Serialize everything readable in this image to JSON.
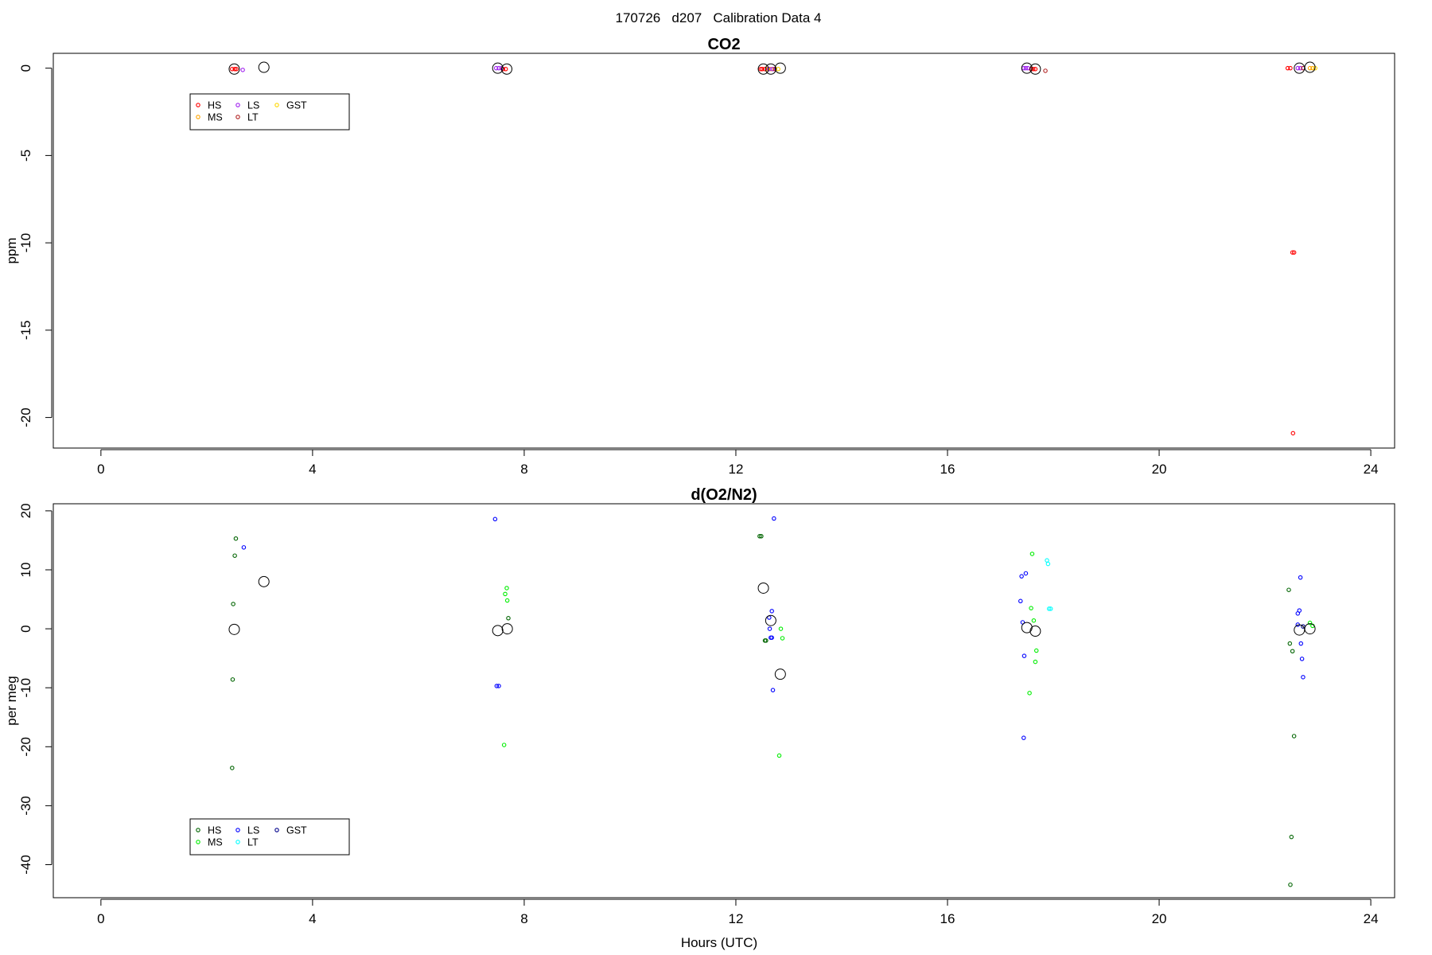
{
  "title": "170726   d207   Calibration Data 4",
  "xlabel": "Hours (UTC)",
  "chart_data": [
    {
      "type": "scatter",
      "title": "CO2",
      "ylabel": "ppm",
      "xlim": [
        -0.9,
        24.45
      ],
      "ylim": [
        -21.75,
        0.85
      ],
      "xticks": [
        "0",
        "4",
        "8",
        "12",
        "16",
        "20",
        "24"
      ],
      "yticks": [
        "0",
        "-5",
        "-10",
        "-15",
        "-20"
      ],
      "legend": {
        "placement": "top-left",
        "items": [
          {
            "name": "HS",
            "color": "#ff0000"
          },
          {
            "name": "LS",
            "color": "#a020f0"
          },
          {
            "name": "GST",
            "color": "#ffd700"
          },
          {
            "name": "MS",
            "color": "#ffa500"
          },
          {
            "name": "LT",
            "color": "#b22222"
          }
        ]
      },
      "series": [
        {
          "name": "HS",
          "color": "#ff0000",
          "points": [
            [
              2.48,
              -0.05
            ],
            [
              2.53,
              -0.05
            ],
            [
              2.56,
              -0.05
            ],
            [
              7.6,
              -0.05
            ],
            [
              7.65,
              -0.05
            ],
            [
              12.47,
              -0.05
            ],
            [
              12.5,
              -0.05
            ],
            [
              12.55,
              -0.05
            ],
            [
              17.58,
              -0.05
            ],
            [
              17.62,
              -0.05
            ],
            [
              17.66,
              -0.05
            ],
            [
              22.43,
              0.0
            ],
            [
              22.48,
              0.0
            ],
            [
              22.52,
              -10.55
            ],
            [
              22.55,
              -10.55
            ],
            [
              22.53,
              -20.9
            ]
          ]
        },
        {
          "name": "MS",
          "color": "#ffa500",
          "points": [
            [
              12.6,
              -0.05
            ],
            [
              12.67,
              -0.05
            ],
            [
              22.85,
              0.0
            ],
            [
              22.9,
              0.0
            ]
          ]
        },
        {
          "name": "LS",
          "color": "#a020f0",
          "points": [
            [
              2.68,
              -0.1
            ],
            [
              7.47,
              0.0
            ],
            [
              7.52,
              0.0
            ],
            [
              7.57,
              0.0
            ],
            [
              12.63,
              -0.05
            ],
            [
              12.7,
              -0.05
            ],
            [
              17.44,
              0.0
            ],
            [
              17.48,
              0.0
            ],
            [
              17.52,
              0.0
            ],
            [
              22.62,
              0.0
            ],
            [
              22.67,
              0.0
            ]
          ]
        },
        {
          "name": "LT",
          "color": "#b22222",
          "points": [
            [
              12.74,
              -0.05
            ],
            [
              17.85,
              -0.15
            ],
            [
              22.72,
              0.0
            ]
          ]
        },
        {
          "name": "GST",
          "color": "#ffd700",
          "points": [
            [
              12.8,
              -0.05
            ],
            [
              22.95,
              0.0
            ]
          ]
        },
        {
          "name": "mean",
          "color": "#000000",
          "large": true,
          "points": [
            [
              2.52,
              -0.05
            ],
            [
              3.08,
              0.05
            ],
            [
              7.5,
              0.0
            ],
            [
              7.67,
              -0.05
            ],
            [
              12.52,
              -0.05
            ],
            [
              12.66,
              -0.05
            ],
            [
              12.84,
              0.0
            ],
            [
              17.5,
              0.0
            ],
            [
              17.66,
              -0.05
            ],
            [
              22.65,
              0.0
            ],
            [
              22.85,
              0.05
            ]
          ]
        }
      ]
    },
    {
      "type": "scatter",
      "title": "d(O2/N2)",
      "ylabel": "per meg",
      "xlim": [
        -0.9,
        24.45
      ],
      "ylim": [
        -45.6,
        21.2
      ],
      "xticks": [
        "0",
        "4",
        "8",
        "12",
        "16",
        "20",
        "24"
      ],
      "yticks": [
        "20",
        "10",
        "0",
        "-10",
        "-20",
        "-30",
        "-40"
      ],
      "legend": {
        "placement": "bottom-left",
        "items": [
          {
            "name": "HS",
            "color": "#006400"
          },
          {
            "name": "LS",
            "color": "#0000ff"
          },
          {
            "name": "GST",
            "color": "#00008b"
          },
          {
            "name": "MS",
            "color": "#00ee00"
          },
          {
            "name": "LT",
            "color": "#00ffff"
          }
        ]
      },
      "series": [
        {
          "name": "HS",
          "color": "#006400",
          "points": [
            [
              2.55,
              15.3
            ],
            [
              2.53,
              12.4
            ],
            [
              2.5,
              4.2
            ],
            [
              2.49,
              -8.6
            ],
            [
              2.48,
              -23.6
            ],
            [
              7.7,
              1.8
            ],
            [
              12.45,
              15.7
            ],
            [
              12.48,
              15.7
            ],
            [
              12.55,
              -2.0
            ],
            [
              12.57,
              -2.0
            ],
            [
              22.45,
              6.6
            ],
            [
              22.47,
              -2.5
            ],
            [
              22.52,
              -3.8
            ],
            [
              22.55,
              -18.2
            ],
            [
              22.5,
              -35.3
            ],
            [
              22.48,
              -43.4
            ]
          ]
        },
        {
          "name": "MS",
          "color": "#00ee00",
          "points": [
            [
              7.67,
              6.9
            ],
            [
              7.64,
              5.9
            ],
            [
              7.68,
              4.8
            ],
            [
              7.62,
              -19.7
            ],
            [
              12.85,
              0.0
            ],
            [
              12.88,
              -1.6
            ],
            [
              12.82,
              -21.5
            ],
            [
              17.6,
              12.7
            ],
            [
              17.58,
              3.5
            ],
            [
              17.63,
              1.4
            ],
            [
              17.68,
              -3.7
            ],
            [
              17.66,
              -5.6
            ],
            [
              17.55,
              -10.9
            ],
            [
              22.85,
              1.0
            ],
            [
              22.9,
              0.5
            ]
          ]
        },
        {
          "name": "LS",
          "color": "#0000ff",
          "points": [
            [
              2.7,
              13.8
            ],
            [
              7.45,
              18.6
            ],
            [
              7.48,
              -9.7
            ],
            [
              7.52,
              -9.7
            ],
            [
              12.72,
              18.7
            ],
            [
              12.68,
              3.0
            ],
            [
              12.63,
              1.9
            ],
            [
              12.64,
              0.0
            ],
            [
              12.66,
              -1.5
            ],
            [
              12.68,
              -1.5
            ],
            [
              12.7,
              -10.4
            ],
            [
              17.4,
              8.9
            ],
            [
              17.48,
              9.4
            ],
            [
              17.38,
              4.7
            ],
            [
              17.42,
              1.1
            ],
            [
              17.45,
              -4.6
            ],
            [
              17.44,
              -18.5
            ],
            [
              22.67,
              8.7
            ],
            [
              22.62,
              2.6
            ],
            [
              22.65,
              3.1
            ],
            [
              22.62,
              0.7
            ],
            [
              22.68,
              -2.5
            ],
            [
              22.7,
              -5.1
            ],
            [
              22.72,
              -8.2
            ]
          ]
        },
        {
          "name": "LT",
          "color": "#00ffff",
          "points": [
            [
              17.88,
              11.6
            ],
            [
              17.9,
              11.0
            ],
            [
              17.92,
              3.4
            ],
            [
              17.95,
              3.4
            ]
          ]
        },
        {
          "name": "GST",
          "color": "#00008b",
          "points": [
            [
              22.72,
              0.4
            ]
          ]
        },
        {
          "name": "mean",
          "color": "#000000",
          "large": true,
          "points": [
            [
              2.52,
              -0.1
            ],
            [
              3.08,
              8.0
            ],
            [
              7.5,
              -0.3
            ],
            [
              7.68,
              0.0
            ],
            [
              12.52,
              6.9
            ],
            [
              12.66,
              1.4
            ],
            [
              12.84,
              -7.7
            ],
            [
              17.5,
              0.2
            ],
            [
              17.66,
              -0.4
            ],
            [
              22.65,
              -0.2
            ],
            [
              22.85,
              0.0
            ]
          ]
        }
      ]
    }
  ]
}
